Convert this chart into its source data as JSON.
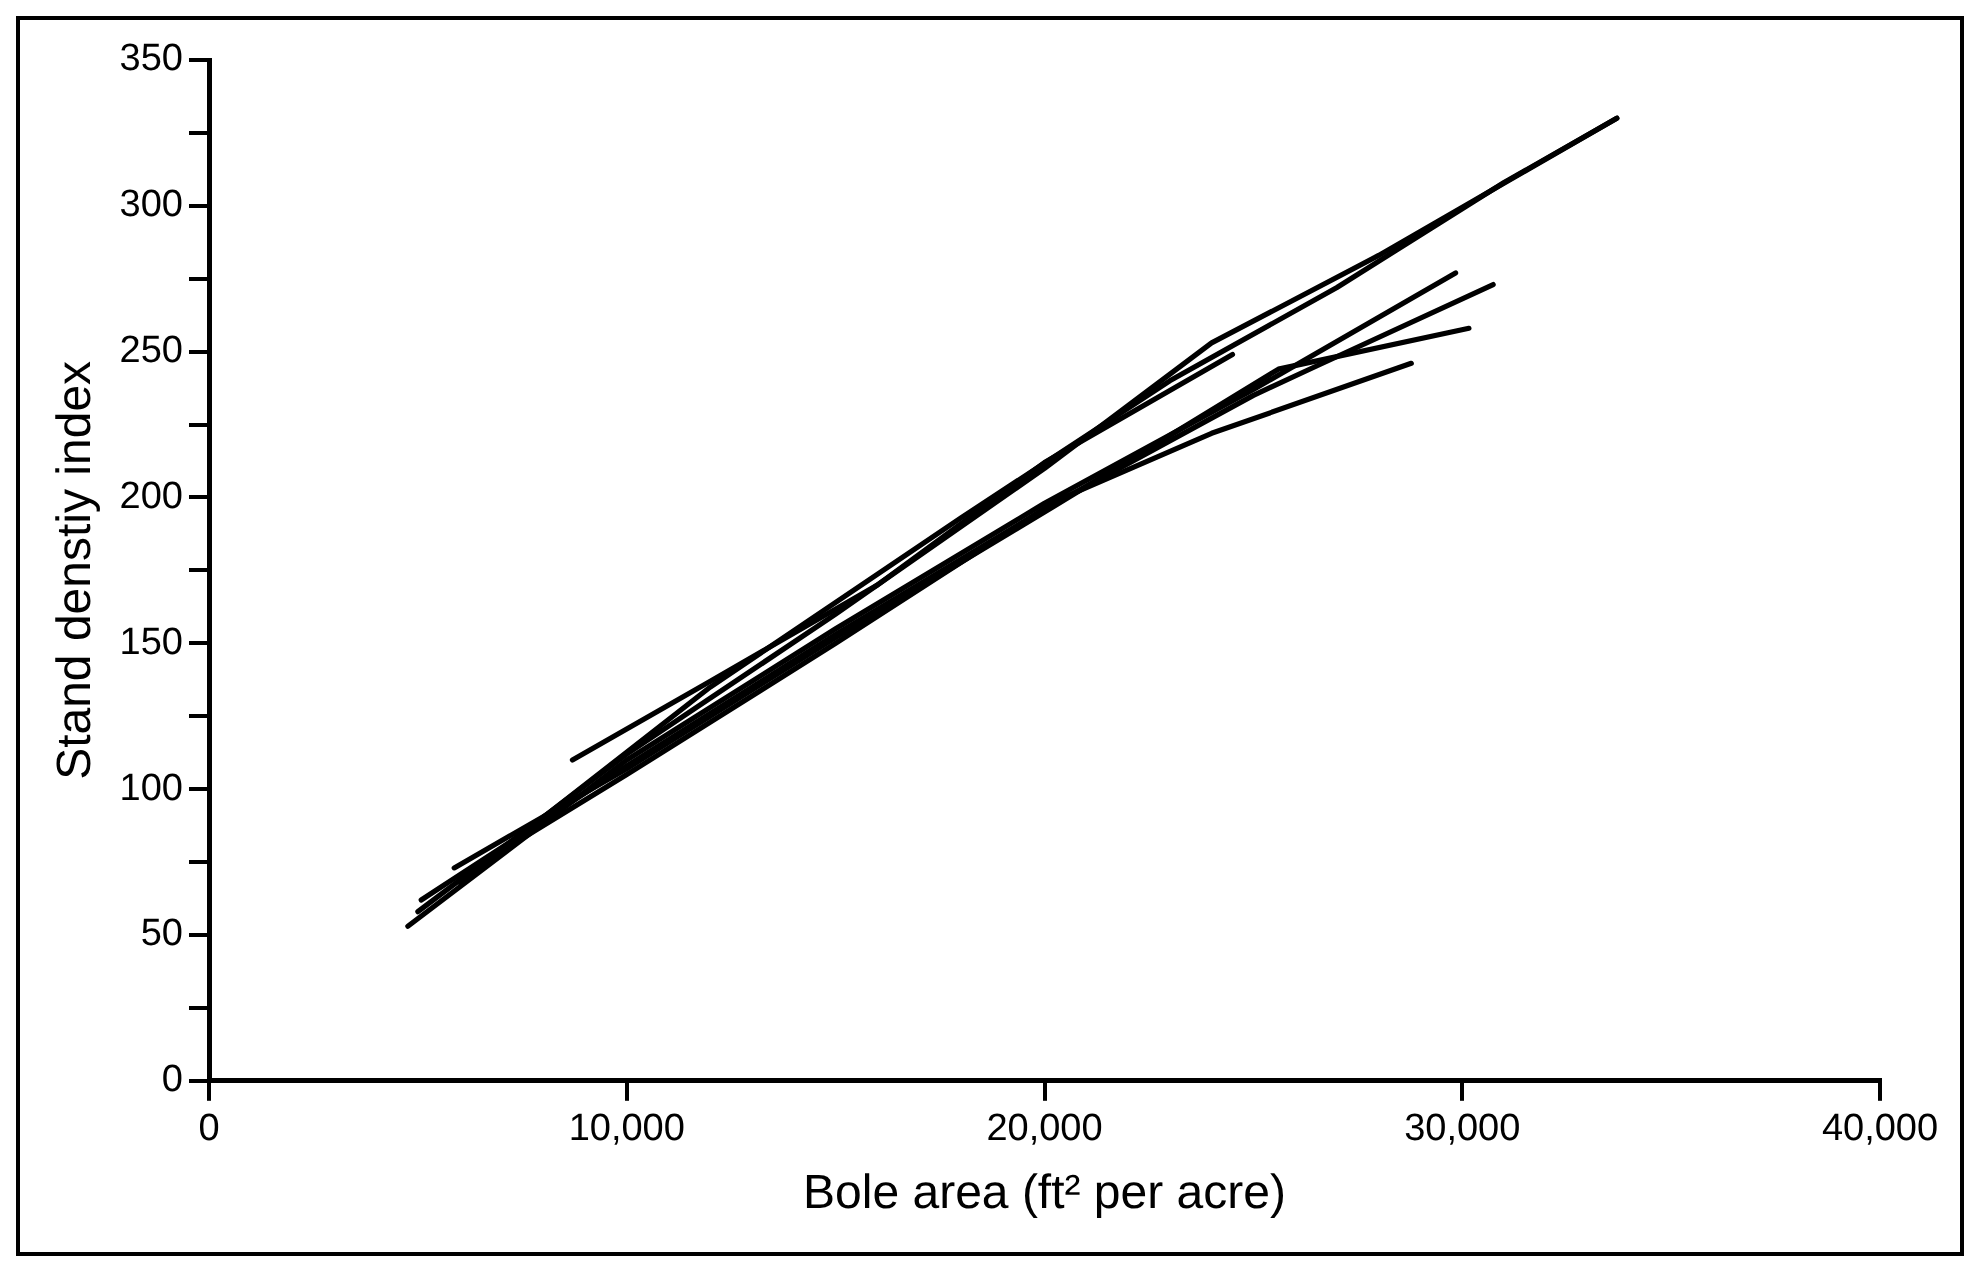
{
  "chart_data": {
    "type": "line",
    "xlabel": "Bole area (ft² per acre)",
    "ylabel": "Stand denstiy index",
    "series": [
      {
        "color": "#000000",
        "x": [
          5000,
          10000,
          15000,
          20000,
          24000,
          28000,
          33700
        ],
        "values": [
          58,
          112,
          160,
          210,
          253,
          283,
          330
        ]
      },
      {
        "color": "#000000",
        "x": [
          6000,
          12000,
          18000,
          23000,
          27000,
          31000,
          33700
        ],
        "values": [
          68,
          135,
          193,
          240,
          272,
          308,
          330
        ]
      },
      {
        "color": "#000000",
        "x": [
          8700,
          12000,
          16000,
          20000,
          24500
        ],
        "values": [
          110,
          137,
          170,
          212,
          249
        ]
      },
      {
        "color": "#000000",
        "x": [
          4760,
          10000,
          15000,
          20000,
          25000,
          29840
        ],
        "values": [
          53,
          110,
          155,
          198,
          237,
          277
        ]
      },
      {
        "color": "#000000",
        "x": [
          5080,
          10000,
          15000,
          20000,
          25000,
          26500,
          30740
        ],
        "values": [
          62,
          108,
          153,
          196,
          235,
          245,
          273
        ]
      },
      {
        "color": "#000000",
        "x": [
          5870,
          10000,
          15000,
          20000,
          25600,
          30160
        ],
        "values": [
          73,
          107,
          152,
          195,
          244,
          258
        ]
      },
      {
        "color": "#000000",
        "x": [
          6000,
          10000,
          15000,
          20300,
          24000,
          28780
        ],
        "values": [
          70,
          105,
          150,
          199,
          222,
          246
        ]
      }
    ],
    "xlim": [
      0,
      40000
    ],
    "xticks": [
      0,
      {
        "value": 10000,
        "label": "10,000"
      },
      {
        "value": 20000,
        "label": "20,000"
      },
      {
        "value": 30000,
        "label": "30,000"
      },
      {
        "value": 40000,
        "label": "40,000"
      }
    ],
    "ylim": [
      0,
      350
    ],
    "yticks": [
      0,
      {
        "value": 25,
        "label": null
      },
      50,
      {
        "value": 75,
        "label": null
      },
      100,
      {
        "value": 125,
        "label": null
      },
      150,
      {
        "value": 175,
        "label": null
      },
      200,
      {
        "value": 225,
        "label": null
      },
      250,
      {
        "value": 275,
        "label": null
      },
      300,
      {
        "value": 325,
        "label": null
      },
      350
    ],
    "grid": false,
    "legend": false,
    "marker": "none",
    "line_style": "solid"
  }
}
